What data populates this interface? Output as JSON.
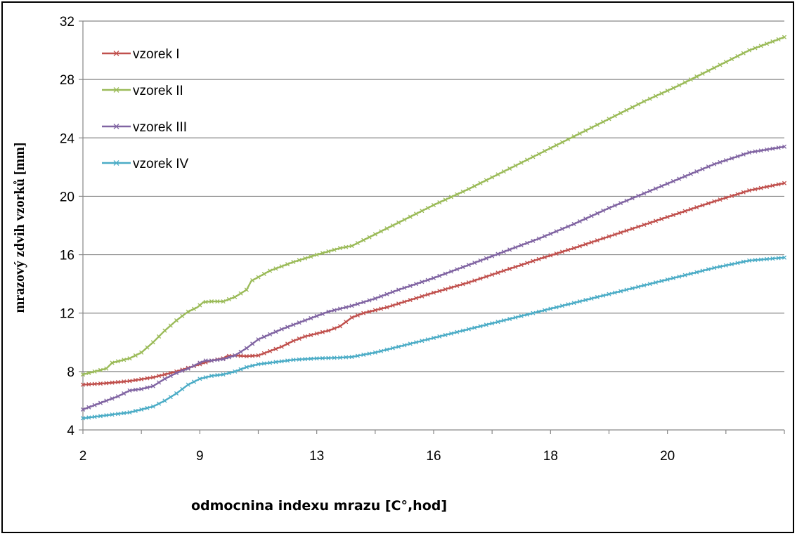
{
  "chart_data": {
    "type": "line",
    "title": "",
    "xlabel": "odmocnina indexu mrazu [C°,hod]",
    "ylabel": "mrazový zdvih vzorků [mm]",
    "ylim": [
      4,
      32
    ],
    "y_ticks": [
      "4",
      "8",
      "12",
      "16",
      "20",
      "24",
      "28",
      "32"
    ],
    "x_tick_labels": [
      "2",
      "9",
      "13",
      "16",
      "18",
      "20"
    ],
    "grid": "horizontal",
    "legend_position": "top-left",
    "series": [
      {
        "name": "vzorek I",
        "color": "#c0504d",
        "points": [
          [
            0,
            7.1
          ],
          [
            2,
            7.2
          ],
          [
            4,
            7.35
          ],
          [
            6,
            7.6
          ],
          [
            8,
            8.0
          ],
          [
            10,
            8.5
          ],
          [
            11,
            8.75
          ],
          [
            12,
            8.9
          ],
          [
            12.3,
            9.05
          ],
          [
            13,
            9.1
          ],
          [
            14,
            9.05
          ],
          [
            15,
            9.1
          ],
          [
            17,
            9.7
          ],
          [
            18,
            10.1
          ],
          [
            19,
            10.4
          ],
          [
            21,
            10.8
          ],
          [
            22,
            11.1
          ],
          [
            23,
            11.7
          ],
          [
            24,
            12.0
          ],
          [
            26,
            12.4
          ],
          [
            28,
            12.9
          ],
          [
            30,
            13.4
          ],
          [
            33,
            14.1
          ],
          [
            36,
            14.9
          ],
          [
            39,
            15.7
          ],
          [
            42,
            16.45
          ],
          [
            45,
            17.25
          ],
          [
            48,
            18.05
          ],
          [
            51,
            18.85
          ],
          [
            54,
            19.65
          ],
          [
            57,
            20.4
          ],
          [
            60,
            20.9
          ]
        ]
      },
      {
        "name": "vzorek II",
        "color": "#9bbb59",
        "points": [
          [
            0,
            7.8
          ],
          [
            1,
            8.0
          ],
          [
            2,
            8.2
          ],
          [
            2.5,
            8.6
          ],
          [
            3,
            8.7
          ],
          [
            4,
            8.9
          ],
          [
            5,
            9.3
          ],
          [
            6,
            10.0
          ],
          [
            7,
            10.8
          ],
          [
            8,
            11.5
          ],
          [
            9,
            12.1
          ],
          [
            9.8,
            12.4
          ],
          [
            10.3,
            12.75
          ],
          [
            11,
            12.8
          ],
          [
            12,
            12.8
          ],
          [
            13,
            13.1
          ],
          [
            14,
            13.6
          ],
          [
            14.4,
            14.2
          ],
          [
            16,
            14.9
          ],
          [
            18,
            15.5
          ],
          [
            20,
            16.0
          ],
          [
            22,
            16.45
          ],
          [
            23,
            16.6
          ],
          [
            25,
            17.4
          ],
          [
            28,
            18.6
          ],
          [
            30,
            19.4
          ],
          [
            33,
            20.5
          ],
          [
            36,
            21.7
          ],
          [
            39,
            22.9
          ],
          [
            42,
            24.1
          ],
          [
            45,
            25.3
          ],
          [
            48,
            26.5
          ],
          [
            51,
            27.6
          ],
          [
            54,
            28.8
          ],
          [
            57,
            30.0
          ],
          [
            60,
            30.9
          ]
        ]
      },
      {
        "name": "vzorek III",
        "color": "#8064a2",
        "points": [
          [
            0,
            5.4
          ],
          [
            1,
            5.7
          ],
          [
            2,
            6.0
          ],
          [
            3,
            6.3
          ],
          [
            4,
            6.7
          ],
          [
            5,
            6.8
          ],
          [
            6,
            7.0
          ],
          [
            7,
            7.5
          ],
          [
            8,
            7.9
          ],
          [
            9,
            8.2
          ],
          [
            10,
            8.6
          ],
          [
            10.5,
            8.75
          ],
          [
            11,
            8.75
          ],
          [
            12,
            8.85
          ],
          [
            13,
            9.1
          ],
          [
            14,
            9.6
          ],
          [
            15,
            10.2
          ],
          [
            16,
            10.55
          ],
          [
            17,
            10.9
          ],
          [
            18,
            11.2
          ],
          [
            19,
            11.5
          ],
          [
            20,
            11.8
          ],
          [
            21,
            12.1
          ],
          [
            22,
            12.3
          ],
          [
            23,
            12.5
          ],
          [
            25,
            13.0
          ],
          [
            27,
            13.6
          ],
          [
            30,
            14.4
          ],
          [
            33,
            15.3
          ],
          [
            36,
            16.2
          ],
          [
            39,
            17.1
          ],
          [
            42,
            18.1
          ],
          [
            45,
            19.2
          ],
          [
            48,
            20.2
          ],
          [
            51,
            21.2
          ],
          [
            54,
            22.2
          ],
          [
            57,
            23.0
          ],
          [
            60,
            23.4
          ]
        ]
      },
      {
        "name": "vzorek IV",
        "color": "#4bacc6",
        "points": [
          [
            0,
            4.8
          ],
          [
            1,
            4.9
          ],
          [
            2,
            5.0
          ],
          [
            3,
            5.1
          ],
          [
            4,
            5.2
          ],
          [
            5,
            5.4
          ],
          [
            6,
            5.6
          ],
          [
            7,
            6.0
          ],
          [
            8,
            6.5
          ],
          [
            9,
            7.1
          ],
          [
            10,
            7.5
          ],
          [
            11,
            7.7
          ],
          [
            12,
            7.8
          ],
          [
            13,
            8.0
          ],
          [
            14,
            8.3
          ],
          [
            15,
            8.5
          ],
          [
            16,
            8.6
          ],
          [
            18,
            8.8
          ],
          [
            20,
            8.9
          ],
          [
            22,
            8.95
          ],
          [
            23,
            9.0
          ],
          [
            25,
            9.3
          ],
          [
            27,
            9.7
          ],
          [
            30,
            10.3
          ],
          [
            33,
            10.9
          ],
          [
            36,
            11.5
          ],
          [
            39,
            12.1
          ],
          [
            42,
            12.7
          ],
          [
            45,
            13.3
          ],
          [
            48,
            13.9
          ],
          [
            51,
            14.5
          ],
          [
            54,
            15.1
          ],
          [
            57,
            15.6
          ],
          [
            60,
            15.8
          ]
        ]
      }
    ]
  }
}
